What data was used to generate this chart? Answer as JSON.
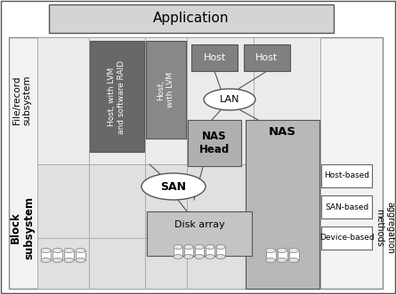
{
  "fig_width": 4.45,
  "fig_height": 3.31,
  "bg_color": "#ffffff",
  "app_label": "Application",
  "file_record_label": "File/record\nsubsystem",
  "block_sub_label": "Block\nsubsystem",
  "block_agg_label": "Block\naggregation\nmethods",
  "host1_label": "Host, with LVM\nand software RAID",
  "host2_label": "Host,\nwith LVM",
  "host3_label": "Host",
  "host4_label": "Host",
  "lan_label": "LAN",
  "nas_head_label": "NAS\nHead",
  "nas_label": "NAS",
  "san_label": "SAN",
  "disk_array_label": "Disk array",
  "host_based_label": "Host-based",
  "san_based_label": "SAN-based",
  "device_based_label": "Device-based",
  "col_light": "#e8e8e8",
  "col_medium": "#c8c8c8",
  "col_dark": "#808080",
  "col_darker": "#606060",
  "col_nas": "#b0b0b0",
  "col_disk_area": "#c0c0c0",
  "col_border": "#888888",
  "col_white": "#ffffff"
}
